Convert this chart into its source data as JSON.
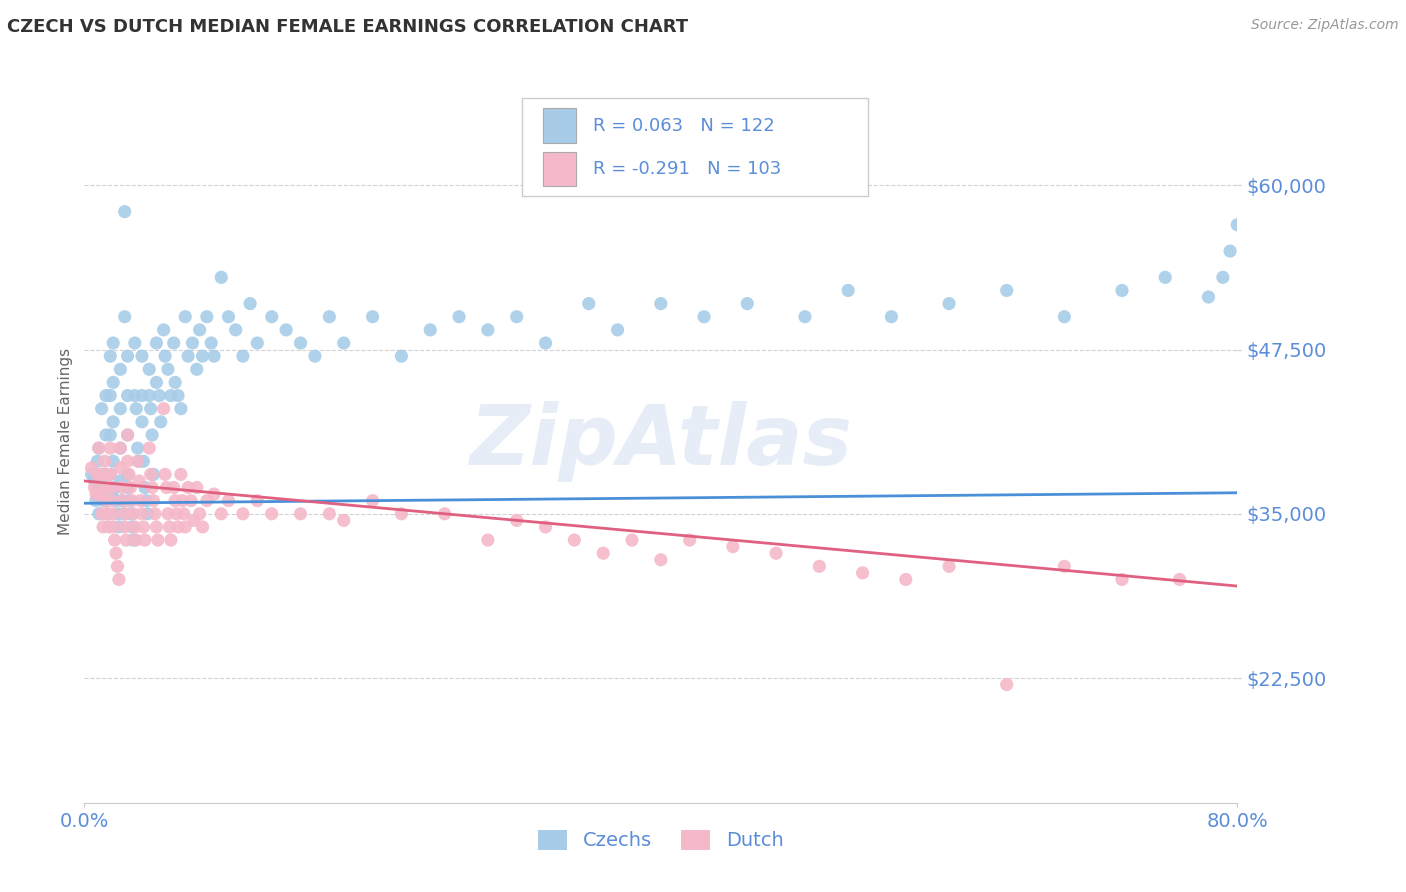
{
  "title": "CZECH VS DUTCH MEDIAN FEMALE EARNINGS CORRELATION CHART",
  "source": "Source: ZipAtlas.com",
  "ylabel": "Median Female Earnings",
  "xlim": [
    0.0,
    0.8
  ],
  "ylim": [
    13000,
    68000
  ],
  "yticks": [
    22500,
    35000,
    47500,
    60000
  ],
  "ytick_labels": [
    "$22,500",
    "$35,000",
    "$47,500",
    "$60,000"
  ],
  "xticks": [
    0.0,
    0.8
  ],
  "xtick_labels": [
    "0.0%",
    "80.0%"
  ],
  "czech_color": "#a8cce8",
  "dutch_color": "#f5b8c8",
  "czech_line_color": "#4a90d9",
  "dutch_line_color": "#e06080",
  "background_color": "#ffffff",
  "grid_color": "#cccccc",
  "title_color": "#333333",
  "axis_label_color": "#5b8dd9",
  "legend_label1": "Czechs",
  "legend_label2": "Dutch",
  "watermark": "ZipAtlas",
  "czech_points": [
    [
      0.005,
      38000
    ],
    [
      0.007,
      37500
    ],
    [
      0.008,
      36000
    ],
    [
      0.009,
      39000
    ],
    [
      0.01,
      40000
    ],
    [
      0.01,
      37000
    ],
    [
      0.01,
      35000
    ],
    [
      0.012,
      43000
    ],
    [
      0.012,
      38000
    ],
    [
      0.013,
      36000
    ],
    [
      0.015,
      44000
    ],
    [
      0.015,
      41000
    ],
    [
      0.015,
      38000
    ],
    [
      0.015,
      36000
    ],
    [
      0.016,
      35000
    ],
    [
      0.018,
      47000
    ],
    [
      0.018,
      44000
    ],
    [
      0.018,
      41000
    ],
    [
      0.018,
      38000
    ],
    [
      0.019,
      36500
    ],
    [
      0.02,
      48000
    ],
    [
      0.02,
      45000
    ],
    [
      0.02,
      42000
    ],
    [
      0.02,
      39000
    ],
    [
      0.021,
      37000
    ],
    [
      0.022,
      36000
    ],
    [
      0.023,
      35000
    ],
    [
      0.024,
      34000
    ],
    [
      0.025,
      46000
    ],
    [
      0.025,
      43000
    ],
    [
      0.025,
      40000
    ],
    [
      0.025,
      37500
    ],
    [
      0.026,
      36000
    ],
    [
      0.027,
      35000
    ],
    [
      0.028,
      58000
    ],
    [
      0.028,
      50000
    ],
    [
      0.03,
      47000
    ],
    [
      0.03,
      44000
    ],
    [
      0.03,
      41000
    ],
    [
      0.03,
      38000
    ],
    [
      0.03,
      37000
    ],
    [
      0.031,
      36000
    ],
    [
      0.032,
      35000
    ],
    [
      0.033,
      34000
    ],
    [
      0.034,
      33000
    ],
    [
      0.035,
      48000
    ],
    [
      0.035,
      44000
    ],
    [
      0.036,
      43000
    ],
    [
      0.037,
      40000
    ],
    [
      0.038,
      39000
    ],
    [
      0.04,
      47000
    ],
    [
      0.04,
      44000
    ],
    [
      0.04,
      42000
    ],
    [
      0.041,
      39000
    ],
    [
      0.042,
      37000
    ],
    [
      0.043,
      36000
    ],
    [
      0.044,
      35000
    ],
    [
      0.045,
      46000
    ],
    [
      0.045,
      44000
    ],
    [
      0.046,
      43000
    ],
    [
      0.047,
      41000
    ],
    [
      0.048,
      38000
    ],
    [
      0.05,
      48000
    ],
    [
      0.05,
      45000
    ],
    [
      0.052,
      44000
    ],
    [
      0.053,
      42000
    ],
    [
      0.055,
      49000
    ],
    [
      0.056,
      47000
    ],
    [
      0.058,
      46000
    ],
    [
      0.06,
      44000
    ],
    [
      0.062,
      48000
    ],
    [
      0.063,
      45000
    ],
    [
      0.065,
      44000
    ],
    [
      0.067,
      43000
    ],
    [
      0.07,
      50000
    ],
    [
      0.072,
      47000
    ],
    [
      0.075,
      48000
    ],
    [
      0.078,
      46000
    ],
    [
      0.08,
      49000
    ],
    [
      0.082,
      47000
    ],
    [
      0.085,
      50000
    ],
    [
      0.088,
      48000
    ],
    [
      0.09,
      47000
    ],
    [
      0.095,
      53000
    ],
    [
      0.1,
      50000
    ],
    [
      0.105,
      49000
    ],
    [
      0.11,
      47000
    ],
    [
      0.115,
      51000
    ],
    [
      0.12,
      48000
    ],
    [
      0.13,
      50000
    ],
    [
      0.14,
      49000
    ],
    [
      0.15,
      48000
    ],
    [
      0.16,
      47000
    ],
    [
      0.17,
      50000
    ],
    [
      0.18,
      48000
    ],
    [
      0.2,
      50000
    ],
    [
      0.22,
      47000
    ],
    [
      0.24,
      49000
    ],
    [
      0.26,
      50000
    ],
    [
      0.28,
      49000
    ],
    [
      0.3,
      50000
    ],
    [
      0.32,
      48000
    ],
    [
      0.35,
      51000
    ],
    [
      0.37,
      49000
    ],
    [
      0.4,
      51000
    ],
    [
      0.43,
      50000
    ],
    [
      0.46,
      51000
    ],
    [
      0.5,
      50000
    ],
    [
      0.53,
      52000
    ],
    [
      0.56,
      50000
    ],
    [
      0.6,
      51000
    ],
    [
      0.64,
      52000
    ],
    [
      0.68,
      50000
    ],
    [
      0.72,
      52000
    ],
    [
      0.75,
      53000
    ],
    [
      0.78,
      51500
    ],
    [
      0.79,
      53000
    ],
    [
      0.795,
      55000
    ],
    [
      0.8,
      57000
    ]
  ],
  "dutch_points": [
    [
      0.005,
      38500
    ],
    [
      0.007,
      37000
    ],
    [
      0.008,
      36500
    ],
    [
      0.009,
      38000
    ],
    [
      0.01,
      40000
    ],
    [
      0.01,
      38000
    ],
    [
      0.011,
      36500
    ],
    [
      0.012,
      35000
    ],
    [
      0.013,
      34000
    ],
    [
      0.014,
      39000
    ],
    [
      0.015,
      38000
    ],
    [
      0.015,
      37000
    ],
    [
      0.015,
      36000
    ],
    [
      0.016,
      35000
    ],
    [
      0.017,
      34000
    ],
    [
      0.018,
      40000
    ],
    [
      0.018,
      38000
    ],
    [
      0.019,
      37000
    ],
    [
      0.019,
      36000
    ],
    [
      0.02,
      35000
    ],
    [
      0.02,
      34000
    ],
    [
      0.021,
      33000
    ],
    [
      0.022,
      32000
    ],
    [
      0.023,
      31000
    ],
    [
      0.024,
      30000
    ],
    [
      0.025,
      40000
    ],
    [
      0.025,
      38500
    ],
    [
      0.026,
      37000
    ],
    [
      0.027,
      36000
    ],
    [
      0.028,
      35000
    ],
    [
      0.028,
      34000
    ],
    [
      0.029,
      33000
    ],
    [
      0.03,
      41000
    ],
    [
      0.03,
      39000
    ],
    [
      0.031,
      38000
    ],
    [
      0.032,
      37000
    ],
    [
      0.033,
      36000
    ],
    [
      0.034,
      35000
    ],
    [
      0.035,
      34000
    ],
    [
      0.036,
      33000
    ],
    [
      0.037,
      39000
    ],
    [
      0.038,
      37500
    ],
    [
      0.039,
      36000
    ],
    [
      0.04,
      35000
    ],
    [
      0.041,
      34000
    ],
    [
      0.042,
      33000
    ],
    [
      0.045,
      40000
    ],
    [
      0.046,
      38000
    ],
    [
      0.047,
      37000
    ],
    [
      0.048,
      36000
    ],
    [
      0.049,
      35000
    ],
    [
      0.05,
      34000
    ],
    [
      0.051,
      33000
    ],
    [
      0.055,
      43000
    ],
    [
      0.056,
      38000
    ],
    [
      0.057,
      37000
    ],
    [
      0.058,
      35000
    ],
    [
      0.059,
      34000
    ],
    [
      0.06,
      33000
    ],
    [
      0.062,
      37000
    ],
    [
      0.063,
      36000
    ],
    [
      0.064,
      35000
    ],
    [
      0.065,
      34000
    ],
    [
      0.067,
      38000
    ],
    [
      0.068,
      36000
    ],
    [
      0.069,
      35000
    ],
    [
      0.07,
      34000
    ],
    [
      0.072,
      37000
    ],
    [
      0.074,
      36000
    ],
    [
      0.076,
      34500
    ],
    [
      0.078,
      37000
    ],
    [
      0.08,
      35000
    ],
    [
      0.082,
      34000
    ],
    [
      0.085,
      36000
    ],
    [
      0.09,
      36500
    ],
    [
      0.095,
      35000
    ],
    [
      0.1,
      36000
    ],
    [
      0.11,
      35000
    ],
    [
      0.12,
      36000
    ],
    [
      0.13,
      35000
    ],
    [
      0.15,
      35000
    ],
    [
      0.17,
      35000
    ],
    [
      0.18,
      34500
    ],
    [
      0.2,
      36000
    ],
    [
      0.22,
      35000
    ],
    [
      0.25,
      35000
    ],
    [
      0.28,
      33000
    ],
    [
      0.3,
      34500
    ],
    [
      0.32,
      34000
    ],
    [
      0.34,
      33000
    ],
    [
      0.36,
      32000
    ],
    [
      0.38,
      33000
    ],
    [
      0.4,
      31500
    ],
    [
      0.42,
      33000
    ],
    [
      0.45,
      32500
    ],
    [
      0.48,
      32000
    ],
    [
      0.51,
      31000
    ],
    [
      0.54,
      30500
    ],
    [
      0.57,
      30000
    ],
    [
      0.6,
      31000
    ],
    [
      0.64,
      22000
    ],
    [
      0.68,
      31000
    ],
    [
      0.72,
      30000
    ],
    [
      0.76,
      30000
    ]
  ]
}
